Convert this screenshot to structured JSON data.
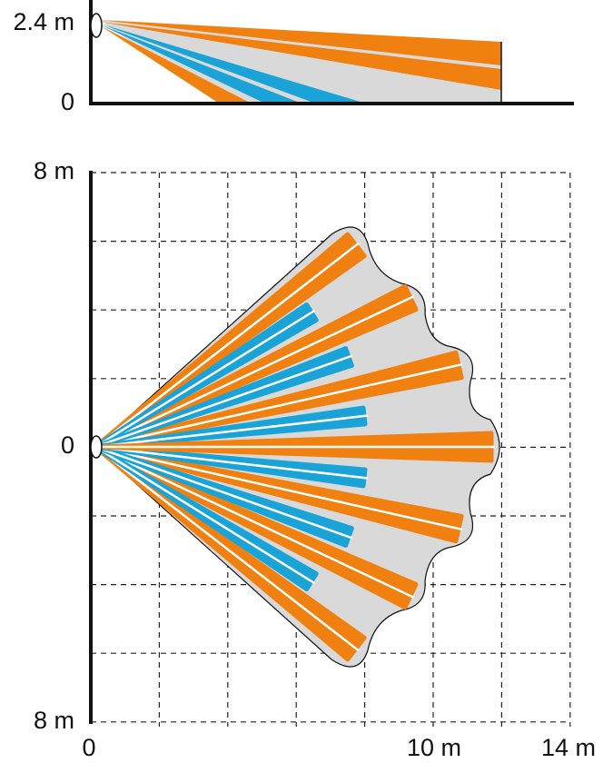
{
  "side_view": {
    "y_labels": [
      "2.4 m",
      "0"
    ]
  },
  "top_view": {
    "y_labels": [
      "8 m",
      "0",
      "8 m"
    ],
    "x_labels": [
      "0",
      "10 m",
      "14 m"
    ]
  }
}
